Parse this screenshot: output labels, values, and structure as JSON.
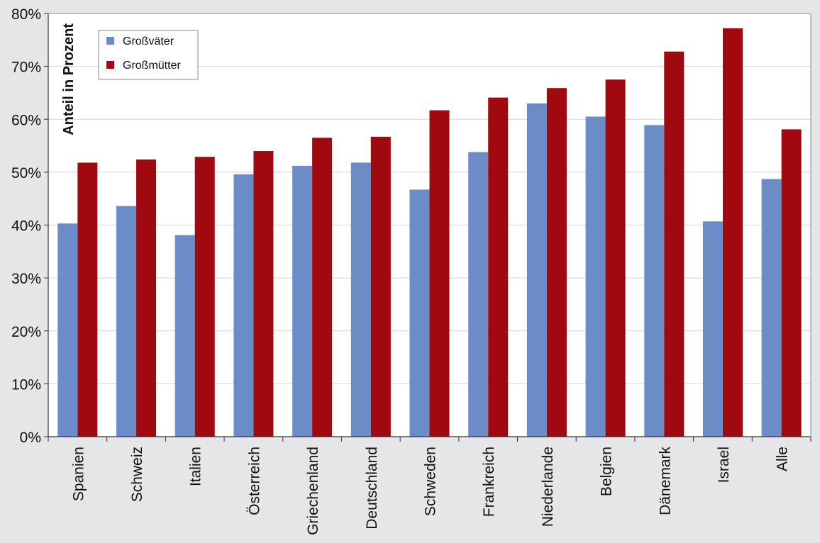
{
  "chart_data": {
    "type": "bar",
    "ylabel": "Anteil in Prozent",
    "ylim": [
      0,
      80
    ],
    "yticks": [
      "0%",
      "10%",
      "20%",
      "30%",
      "40%",
      "50%",
      "60%",
      "70%",
      "80%"
    ],
    "grid": true,
    "legend_position": "top-left",
    "categories": [
      "Spanien",
      "Schweiz",
      "Italien",
      "Österreich",
      "Griechenland",
      "Deutschland",
      "Schweden",
      "Frankreich",
      "Niederlande",
      "Belgien",
      "Dänemark",
      "Israel",
      "Alle"
    ],
    "series": [
      {
        "name": "Großväter",
        "color": "#6b8cc7",
        "values": [
          40.3,
          43.6,
          38.1,
          49.6,
          51.2,
          51.8,
          46.7,
          53.8,
          63.0,
          60.5,
          58.9,
          40.7,
          48.7
        ]
      },
      {
        "name": "Großmütter",
        "color": "#a0090f",
        "values": [
          51.8,
          52.4,
          52.9,
          54.0,
          56.5,
          56.7,
          61.7,
          64.1,
          65.9,
          67.5,
          72.8,
          77.2,
          58.1
        ]
      }
    ]
  }
}
